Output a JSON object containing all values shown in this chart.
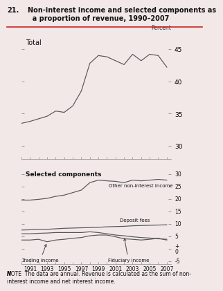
{
  "title_num": "21.",
  "title_text": "Non-interest income and selected components as\n  a proportion of revenue, 1990–2007",
  "bg_color": "#f2e8e8",
  "years": [
    1990,
    1991,
    1992,
    1993,
    1994,
    1995,
    1996,
    1997,
    1998,
    1999,
    2000,
    2001,
    2002,
    2003,
    2004,
    2005,
    2006,
    2007
  ],
  "total": [
    33.5,
    33.8,
    34.2,
    34.6,
    35.4,
    35.2,
    36.2,
    38.5,
    42.8,
    44.0,
    43.8,
    43.2,
    42.6,
    44.2,
    43.2,
    44.2,
    44.0,
    42.2
  ],
  "other_noninterest": [
    19.5,
    19.5,
    19.8,
    20.2,
    21.0,
    21.5,
    22.5,
    23.5,
    26.5,
    27.5,
    27.2,
    27.0,
    26.5,
    27.5,
    27.2,
    27.5,
    27.8,
    27.5
  ],
  "deposit_fees": [
    7.5,
    7.6,
    7.8,
    7.8,
    8.0,
    8.2,
    8.3,
    8.4,
    8.5,
    8.6,
    8.8,
    8.9,
    9.0,
    9.2,
    9.3,
    9.4,
    9.5,
    9.6
  ],
  "trading_income": [
    3.5,
    3.5,
    3.8,
    2.8,
    3.5,
    3.8,
    4.2,
    4.5,
    5.2,
    5.5,
    5.5,
    4.8,
    4.0,
    3.8,
    3.5,
    3.8,
    4.2,
    3.5
  ],
  "fiduciary_income": [
    6.0,
    6.0,
    6.2,
    6.3,
    6.5,
    6.5,
    6.5,
    6.5,
    6.8,
    6.5,
    6.0,
    5.5,
    5.2,
    4.8,
    4.5,
    4.3,
    4.0,
    3.8
  ],
  "note_bold": "NOTE",
  "note_rest": "  The data are annual. Revenue is calculated as the sum of non-\ninterest income and net interest income.",
  "line_color": "#555555",
  "tick_label_years": [
    1991,
    1993,
    1995,
    1997,
    1999,
    2001,
    2003,
    2005,
    2007
  ]
}
